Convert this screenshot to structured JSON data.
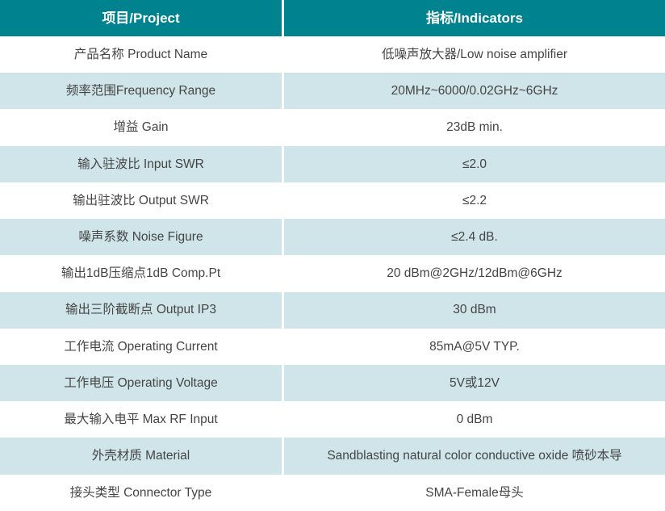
{
  "table": {
    "headers": [
      {
        "label": "项目/Project"
      },
      {
        "label": "指标/Indicators"
      }
    ],
    "rows": [
      {
        "project": "产品名称 Product Name",
        "indicator": "低噪声放大器/Low noise amplifier"
      },
      {
        "project": "频率范围Frequency Range",
        "indicator": "20MHz~6000/0.02GHz~6GHz"
      },
      {
        "project": "增益 Gain",
        "indicator": "23dB min."
      },
      {
        "project": "输入驻波比 Input SWR",
        "indicator": "≤2.0"
      },
      {
        "project": "输出驻波比 Output SWR",
        "indicator": "≤2.2"
      },
      {
        "project": "噪声系数 Noise Figure",
        "indicator": "≤2.4 dB."
      },
      {
        "project": "输出1dB压缩点1dB Comp.Pt",
        "indicator": "20 dBm@2GHz/12dBm@6GHz"
      },
      {
        "project": "输出三阶截断点 Output IP3",
        "indicator": "30 dBm"
      },
      {
        "project": "工作电流 Operating Current",
        "indicator": "85mA@5V TYP."
      },
      {
        "project": "工作电压 Operating Voltage",
        "indicator": "5V或12V"
      },
      {
        "project": "最大输入电平 Max RF Input",
        "indicator": "0 dBm"
      },
      {
        "project": "外壳材质 Material",
        "indicator": "Sandblasting natural color conductive oxide 喷砂本导"
      },
      {
        "project": "接头类型 Connector Type",
        "indicator": "SMA-Female母头"
      }
    ],
    "colors": {
      "header_bg": "#00828f",
      "header_text": "#ffffff",
      "row_alt_bg": "#cfe5e9",
      "row_bg": "#ffffff",
      "text": "#454545"
    }
  }
}
